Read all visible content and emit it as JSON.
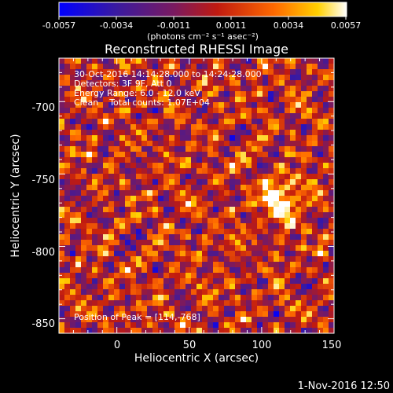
{
  "colorbar": {
    "tick_labels": [
      "-0.0057",
      "-0.0034",
      "-0.0011",
      "0.0011",
      "0.0034",
      "0.0057"
    ],
    "units_label": "(photons cm⁻² s⁻¹ asec⁻²)"
  },
  "info": {
    "line1": "30-Oct-2016 14:14:28.000 to 14:24:28.000",
    "line2": "Detectors: 3F 9F, Att 0",
    "line3": "Energy Range: 6.0 - 12.0 keV",
    "line4": "Clean    Total counts: 1.07E+04",
    "peak": "Position of Peak = [114,-768]"
  },
  "footer": {
    "date": "1-Nov-2016 12:50"
  },
  "colors": {
    "background": "#000000",
    "foreground": "#ffffff",
    "map_dark_red": "#8a0f0f",
    "map_red": "#d72b1a",
    "map_orange": "#ff7a00",
    "map_yellow": "#ffd400",
    "map_white": "#ffffff",
    "map_purple": "#5a1a7a",
    "map_blue": "#1a1a8a"
  },
  "chart_data": {
    "type": "heatmap",
    "title": "Reconstructed RHESSI Image",
    "xlabel": "Heliocentric X (arcsec)",
    "ylabel": "Heliocentric Y (arcsec)",
    "xlim": [
      -40,
      150
    ],
    "ylim": [
      -860,
      -670
    ],
    "xticks": [
      0,
      50,
      100,
      150
    ],
    "yticks": [
      -700,
      -750,
      -800,
      -850
    ],
    "colorbar_range": [
      -0.0057,
      0.0057
    ],
    "colormap": "blue-purple-red-orange-yellow-white",
    "peak_position": [
      114,
      -768
    ],
    "total_counts": "1.07E+04",
    "energy_range_keV": [
      6.0,
      12.0
    ]
  }
}
